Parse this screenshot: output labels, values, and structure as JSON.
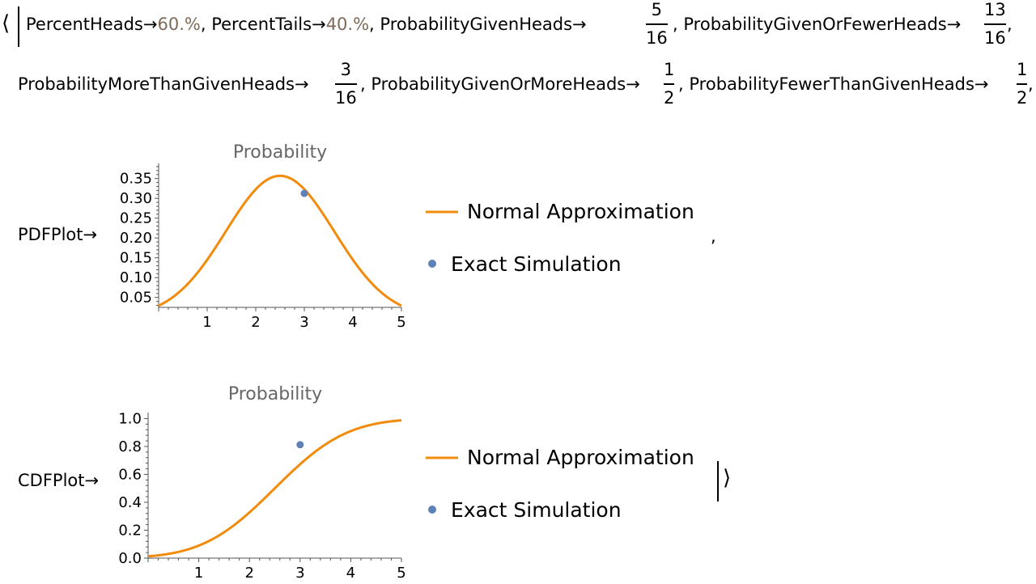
{
  "association": {
    "open": "⟨",
    "close": "⟩",
    "arrow": "→",
    "comma": ",",
    "entries": {
      "percent_heads": {
        "key": "PercentHeads",
        "value": "60.%"
      },
      "percent_tails": {
        "key": "PercentTails",
        "value": "40.%"
      },
      "prob_given_heads": {
        "key": "ProbabilityGivenHeads",
        "num": "5",
        "den": "16"
      },
      "prob_given_or_fewer": {
        "key": "ProbabilityGivenOrFewerHeads",
        "num": "13",
        "den": "16"
      },
      "prob_more_than_given": {
        "key": "ProbabilityMoreThanGivenHeads",
        "num": "3",
        "den": "16"
      },
      "prob_given_or_more": {
        "key": "ProbabilityGivenOrMoreHeads",
        "num": "1",
        "den": "2"
      },
      "prob_fewer_than_given": {
        "key": "ProbabilityFewerThanGivenHeads",
        "num": "1",
        "den": "2"
      },
      "pdf_plot": {
        "key": "PDFPlot"
      },
      "cdf_plot": {
        "key": "CDFPlot"
      }
    }
  },
  "legend": {
    "normal": "Normal Approximation",
    "exact": "Exact Simulation"
  },
  "colors": {
    "normal": "#f28b0c",
    "exact": "#5e82b5",
    "axis": "#555555",
    "title": "#666666",
    "percent": "#7d6a58"
  },
  "chart_data": [
    {
      "type": "line",
      "title": "Probability",
      "xlabel": "",
      "ylabel": "",
      "xlim": [
        0,
        5
      ],
      "ylim": [
        0.025,
        0.38
      ],
      "xticks": [
        1,
        2,
        3,
        4,
        5
      ],
      "yticks": [
        "0.05",
        "0.10",
        "0.15",
        "0.20",
        "0.25",
        "0.30",
        "0.35"
      ],
      "series": [
        {
          "name": "Normal Approximation",
          "kind": "normal-pdf",
          "mean": 2.5,
          "sd": 1.118,
          "x_range": [
            0,
            5
          ]
        },
        {
          "name": "Exact Simulation",
          "kind": "points",
          "points": [
            [
              3,
              0.3125
            ]
          ]
        }
      ],
      "grid": false
    },
    {
      "type": "line",
      "title": "Probability",
      "xlabel": "",
      "ylabel": "",
      "xlim": [
        0,
        5
      ],
      "ylim": [
        0,
        1.02
      ],
      "xticks": [
        1,
        2,
        3,
        4,
        5
      ],
      "yticks": [
        "0.0",
        "0.2",
        "0.4",
        "0.6",
        "0.8",
        "1.0"
      ],
      "series": [
        {
          "name": "Normal Approximation",
          "kind": "normal-cdf",
          "mean": 2.5,
          "sd": 1.118,
          "x_range": [
            0,
            5
          ]
        },
        {
          "name": "Exact Simulation",
          "kind": "points",
          "points": [
            [
              3,
              0.8125
            ]
          ]
        }
      ],
      "grid": false
    }
  ]
}
